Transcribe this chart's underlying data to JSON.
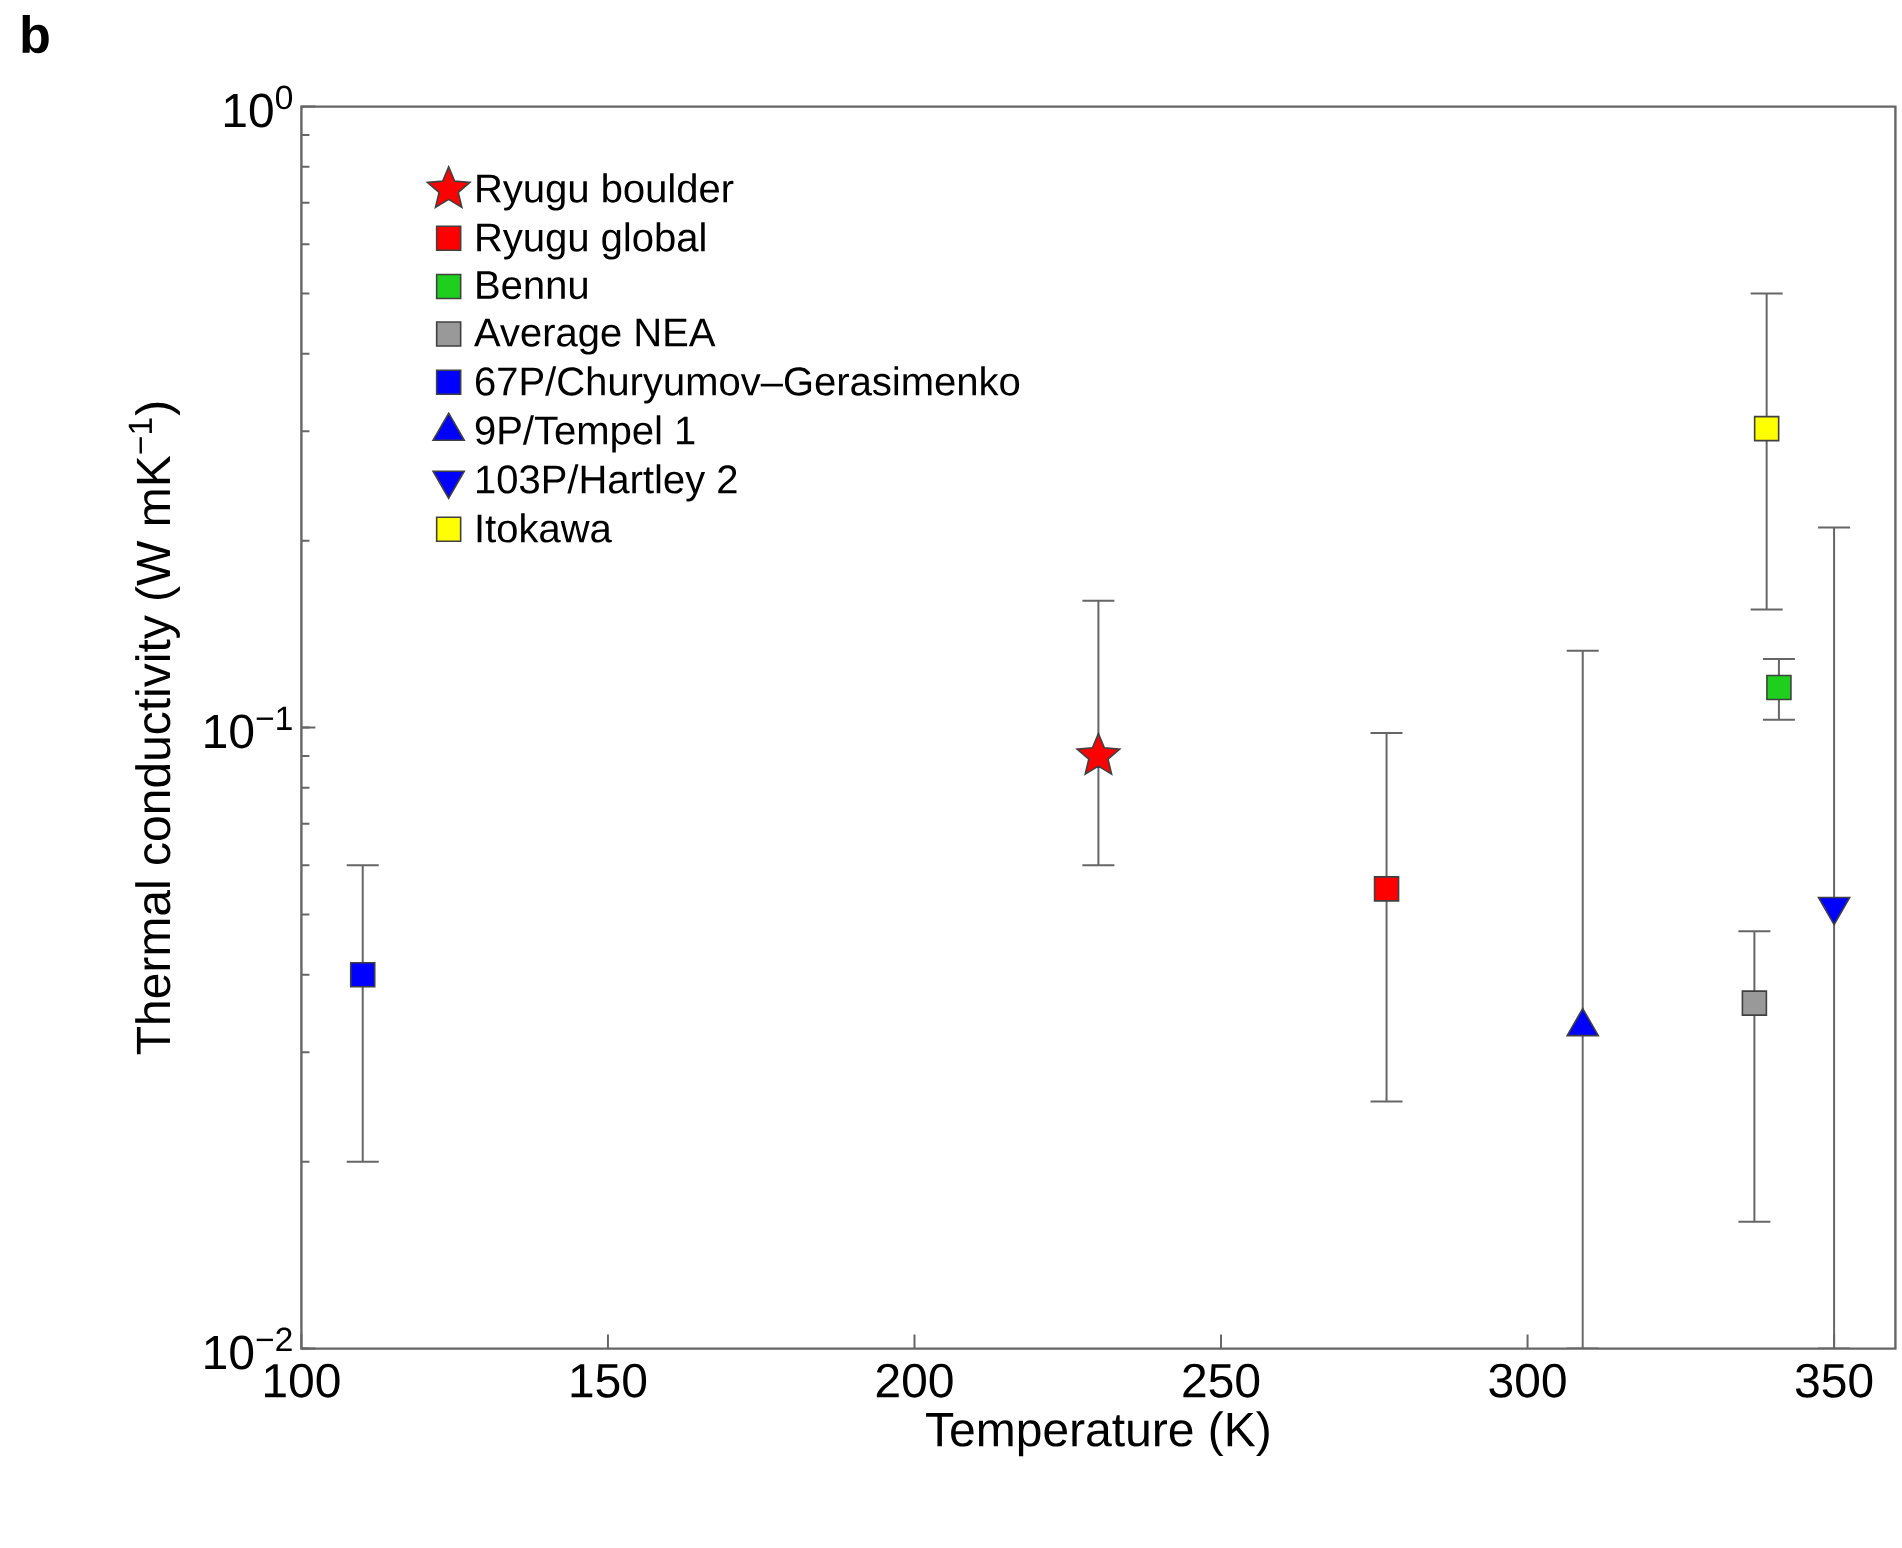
{
  "chart_data": {
    "type": "scatter",
    "xlabel": "Temperature (K)",
    "ylabel": "Thermal conductivity (W mK$^{−1}$)",
    "annotations": [
      "b"
    ],
    "xlim": [
      100,
      360
    ],
    "xticks": [
      100,
      150,
      200,
      250,
      300,
      350
    ],
    "ylim": [
      0.01,
      1
    ],
    "yticks": [
      {
        "value": 0.01,
        "label": "10$^{−2}$"
      },
      {
        "value": 0.1,
        "label": "10$^{−1}$"
      },
      {
        "value": 1,
        "label": "10$^{0}$"
      }
    ],
    "log": "y",
    "legend": "top left",
    "series": [
      {
        "name": "Ryugu boulder",
        "color": "#ff0000",
        "marker": "star",
        "x": [
          230
        ],
        "values": [
          0.09
        ],
        "errors": [
          [
            0.06,
            0.16
          ]
        ]
      },
      {
        "name": "Ryugu global",
        "color": "#ff0000",
        "marker": "square",
        "x": [
          277
        ],
        "values": [
          0.055
        ],
        "errors": [
          [
            0.025,
            0.098
          ]
        ]
      },
      {
        "name": "Bennu",
        "color": "#1ecf1e",
        "marker": "square",
        "x": [
          341
        ],
        "values": [
          0.116
        ],
        "errors": [
          [
            0.103,
            0.129
          ]
        ]
      },
      {
        "name": "Average NEA",
        "color": "#999999",
        "marker": "square",
        "x": [
          337
        ],
        "values": [
          0.036
        ],
        "errors": [
          [
            0.016,
            0.047
          ]
        ]
      },
      {
        "name": "67P/Churyumov–Gerasimenko",
        "color": "#0000ff",
        "marker": "square",
        "x": [
          110
        ],
        "values": [
          0.04
        ],
        "errors": [
          [
            0.02,
            0.06
          ]
        ]
      },
      {
        "name": "9P/Tempel 1",
        "color": "#0000ff",
        "marker": "triangle",
        "x": [
          309
        ],
        "values": [
          0.033
        ],
        "errors": [
          [
            0.01,
            0.133
          ]
        ]
      },
      {
        "name": "103P/Hartley 2",
        "color": "#0000ff",
        "marker": "triangle-down",
        "x": [
          350
        ],
        "values": [
          0.0515
        ],
        "errors": [
          [
            0.01,
            0.21
          ]
        ]
      },
      {
        "name": "Itokawa",
        "color": "#ffff00",
        "marker": "square",
        "x": [
          339
        ],
        "values": [
          0.303
        ],
        "errors": [
          [
            0.155,
            0.5
          ]
        ]
      }
    ]
  }
}
